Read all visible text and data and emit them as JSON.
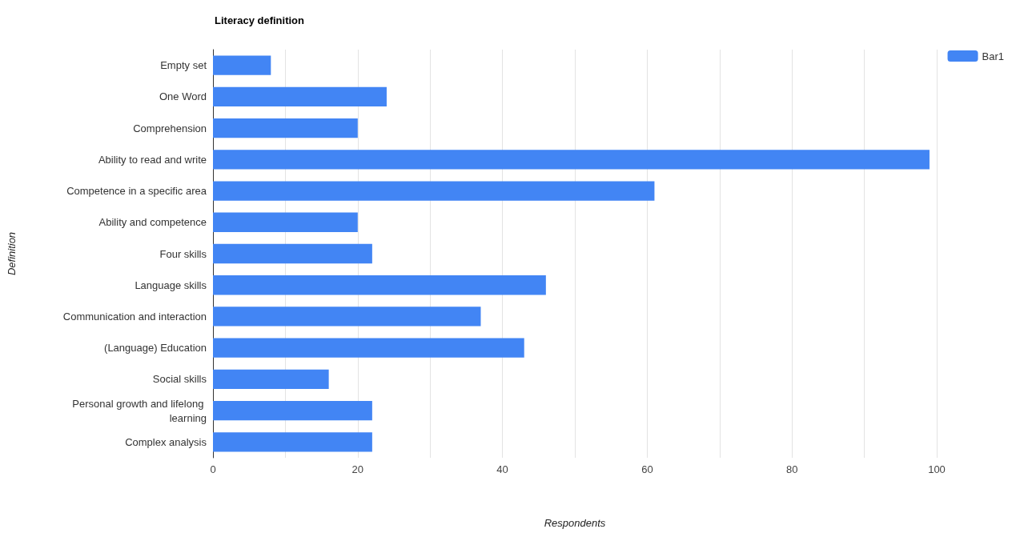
{
  "chart_data": {
    "type": "bar",
    "orientation": "horizontal",
    "title": "Literacy definition",
    "xlabel": "Respondents",
    "ylabel": "Definition",
    "categories": [
      "Empty set",
      "One Word",
      "Comprehension",
      "Ability to read and write",
      "Competence in a specific area",
      "Ability and competence",
      "Four skills",
      "Language skills",
      "Communication and interaction",
      "(Language) Education",
      "Social skills",
      "Personal growth and lifelong learning",
      "Complex analysis"
    ],
    "series": [
      {
        "name": "Bar1",
        "color": "#4285f4",
        "values": [
          8,
          24,
          20,
          99,
          61,
          20,
          22,
          46,
          37,
          43,
          16,
          22,
          22
        ]
      }
    ],
    "xlim": [
      0,
      100
    ],
    "xticks": [
      0,
      {
        "value": 10,
        "label": null
      },
      20,
      {
        "value": 30,
        "label": null
      },
      40,
      {
        "value": 50,
        "label": null
      },
      60,
      {
        "value": 70,
        "label": null
      },
      80,
      {
        "value": 90,
        "label": null
      },
      100
    ],
    "grid": "x",
    "legend": "top right"
  }
}
